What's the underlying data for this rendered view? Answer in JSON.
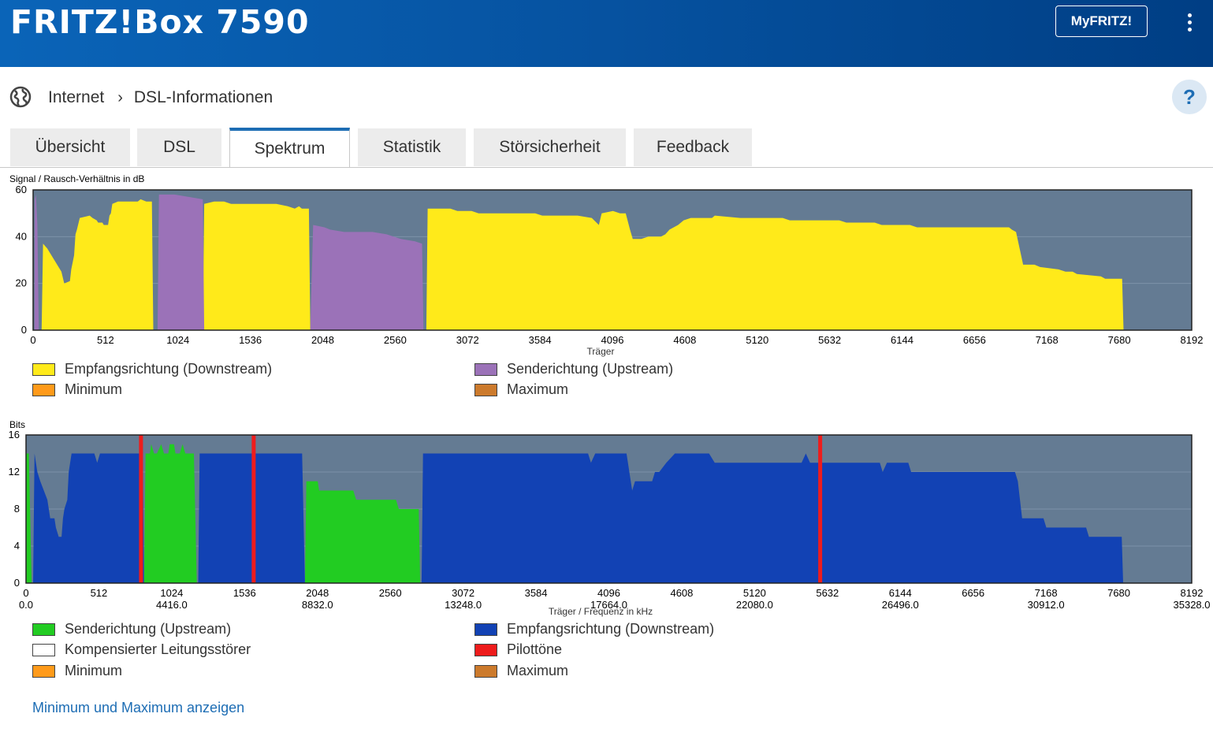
{
  "header": {
    "title": "FRITZ!Box 7590",
    "myfritz_label": "MyFRITZ!"
  },
  "breadcrumb": {
    "items": [
      "Internet",
      "DSL-Informationen"
    ]
  },
  "tabs": [
    "Übersicht",
    "DSL",
    "Spektrum",
    "Statistik",
    "Störsicherheit",
    "Feedback"
  ],
  "active_tab": "Spektrum",
  "colors": {
    "downstream_snr": "#ffea1a",
    "upstream_snr": "#9b72b8",
    "upstream_bits": "#22cc22",
    "downstream_bits": "#1242b4",
    "pilot": "#ee1c1c",
    "minimum": "#ff9a1a",
    "maximum": "#cc7a2c",
    "plot_bg": "#647b93"
  },
  "chart_data": [
    {
      "type": "area",
      "ylabel": "Signal / Rausch-Verhältnis in dB",
      "xlabel": "Träger",
      "ylim": [
        0,
        60
      ],
      "xlim": [
        0,
        8192
      ],
      "yticks": [
        0,
        20,
        40,
        60
      ],
      "xticks": [
        0,
        512,
        1024,
        1536,
        2048,
        2560,
        3072,
        3584,
        4096,
        4608,
        5120,
        5632,
        6144,
        6656,
        7168,
        7680,
        8192
      ],
      "grid": true,
      "series": [
        {
          "name": "Empfangsrichtung (Downstream)",
          "color": "#ffea1a",
          "segments": [
            [
              [
                60,
                0
              ],
              [
                70,
                37
              ],
              [
                100,
                35
              ],
              [
                200,
                25
              ],
              [
                220,
                20
              ],
              [
                260,
                21
              ],
              [
                270,
                26
              ],
              [
                290,
                32
              ],
              [
                300,
                41
              ],
              [
                310,
                43
              ],
              [
                330,
                48
              ],
              [
                400,
                49
              ],
              [
                420,
                48
              ],
              [
                450,
                47
              ],
              [
                460,
                46
              ],
              [
                490,
                46
              ],
              [
                500,
                45
              ],
              [
                530,
                45
              ],
              [
                540,
                49
              ],
              [
                550,
                50
              ],
              [
                560,
                54
              ],
              [
                600,
                55
              ],
              [
                740,
                55
              ],
              [
                760,
                56
              ],
              [
                800,
                55
              ],
              [
                840,
                55
              ],
              [
                850,
                0
              ]
            ],
            [
              [
                1200,
                0
              ],
              [
                1210,
                54
              ],
              [
                1280,
                55
              ],
              [
                1350,
                55
              ],
              [
                1400,
                54
              ],
              [
                1640,
                54
              ],
              [
                1720,
                54
              ],
              [
                1800,
                53
              ],
              [
                1850,
                52
              ],
              [
                1880,
                53
              ],
              [
                1900,
                52
              ],
              [
                1950,
                52
              ],
              [
                1960,
                0
              ]
            ],
            [
              [
                2780,
                0
              ],
              [
                2790,
                52
              ],
              [
                2950,
                52
              ],
              [
                3000,
                51
              ],
              [
                3100,
                51
              ],
              [
                3150,
                50
              ],
              [
                3550,
                50
              ],
              [
                3600,
                49
              ],
              [
                3850,
                49
              ],
              [
                3950,
                48
              ],
              [
                4000,
                45
              ],
              [
                4020,
                50
              ],
              [
                4100,
                51
              ],
              [
                4150,
                50
              ],
              [
                4190,
                50
              ],
              [
                4220,
                43
              ],
              [
                4240,
                39
              ],
              [
                4300,
                39
              ],
              [
                4350,
                40
              ],
              [
                4440,
                40
              ],
              [
                4470,
                41
              ],
              [
                4500,
                43
              ],
              [
                4560,
                45
              ],
              [
                4600,
                47
              ],
              [
                4650,
                48
              ],
              [
                4800,
                48
              ],
              [
                4820,
                49
              ],
              [
                5000,
                48
              ],
              [
                5300,
                48
              ],
              [
                5350,
                47
              ],
              [
                5700,
                47
              ],
              [
                5750,
                46
              ],
              [
                5950,
                46
              ],
              [
                6000,
                45
              ],
              [
                6200,
                45
              ],
              [
                6250,
                44
              ],
              [
                6900,
                44
              ],
              [
                6920,
                43
              ],
              [
                6950,
                42
              ],
              [
                7000,
                28
              ],
              [
                7080,
                28
              ],
              [
                7120,
                27
              ],
              [
                7250,
                26
              ],
              [
                7300,
                25
              ],
              [
                7350,
                25
              ],
              [
                7380,
                24
              ],
              [
                7550,
                23
              ],
              [
                7580,
                22
              ],
              [
                7700,
                22
              ],
              [
                7710,
                0
              ]
            ]
          ]
        },
        {
          "name": "Senderichtung (Upstream)",
          "color": "#9b72b8",
          "segments": [
            [
              [
                10,
                0
              ],
              [
                12,
                56
              ],
              [
                20,
                58
              ],
              [
                30,
                45
              ],
              [
                40,
                0
              ]
            ],
            [
              [
                880,
                0
              ],
              [
                890,
                58
              ],
              [
                1000,
                58
              ],
              [
                1100,
                57
              ],
              [
                1200,
                56
              ],
              [
                1210,
                0
              ]
            ],
            [
              [
                1960,
                0
              ],
              [
                1980,
                45
              ],
              [
                2060,
                44
              ],
              [
                2100,
                43
              ],
              [
                2200,
                42
              ],
              [
                2400,
                42
              ],
              [
                2500,
                41
              ],
              [
                2600,
                39
              ],
              [
                2700,
                38
              ],
              [
                2750,
                37
              ],
              [
                2760,
                0
              ]
            ]
          ]
        },
        {
          "name": "Minimum",
          "color": "#ff9a1a",
          "segments": []
        },
        {
          "name": "Maximum",
          "color": "#cc7a2c",
          "segments": []
        }
      ],
      "legend": [
        {
          "label": "Empfangsrichtung (Downstream)",
          "color": "#ffea1a"
        },
        {
          "label": "Senderichtung (Upstream)",
          "color": "#9b72b8"
        },
        {
          "label": "Minimum",
          "color": "#ff9a1a"
        },
        {
          "label": "Maximum",
          "color": "#cc7a2c"
        }
      ]
    },
    {
      "type": "area",
      "ylabel": "Bits",
      "xlabel": "Träger / Frequenz in kHz",
      "ylim": [
        0,
        16
      ],
      "xlim": [
        0,
        8192
      ],
      "yticks": [
        0,
        4,
        8,
        12,
        16
      ],
      "ytick_labels": [
        "0",
        "4",
        "8",
        "12",
        "16"
      ],
      "xticks": [
        0,
        512,
        1024,
        1536,
        2048,
        2560,
        3072,
        3584,
        4096,
        4608,
        5120,
        5632,
        6144,
        6656,
        7168,
        7680,
        8192
      ],
      "xticks_khz": [
        [
          0,
          "0.0"
        ],
        [
          1024,
          "4416.0"
        ],
        [
          2048,
          "8832.0"
        ],
        [
          3072,
          "13248.0"
        ],
        [
          4096,
          "17664.0"
        ],
        [
          5120,
          "22080.0"
        ],
        [
          6144,
          "26496.0"
        ],
        [
          7168,
          "30912.0"
        ],
        [
          8192,
          "35328.0"
        ]
      ],
      "grid": true,
      "series": [
        {
          "name": "Empfangsrichtung (Downstream)",
          "color": "#1242b4",
          "segments": [
            [
              [
                50,
                0
              ],
              [
                60,
                14
              ],
              [
                80,
                12
              ],
              [
                100,
                11
              ],
              [
                150,
                9
              ],
              [
                170,
                7
              ],
              [
                200,
                7
              ],
              [
                210,
                6
              ],
              [
                230,
                5
              ],
              [
                250,
                5
              ],
              [
                260,
                7
              ],
              [
                270,
                8
              ],
              [
                290,
                9
              ],
              [
                300,
                12
              ],
              [
                320,
                14
              ],
              [
                480,
                14
              ],
              [
                500,
                13
              ],
              [
                520,
                14
              ],
              [
                820,
                14
              ],
              [
                830,
                0
              ]
            ],
            [
              [
                1210,
                0
              ],
              [
                1220,
                14
              ],
              [
                1940,
                14
              ],
              [
                1960,
                0
              ]
            ],
            [
              [
                2780,
                0
              ],
              [
                2790,
                14
              ],
              [
                3950,
                14
              ],
              [
                3970,
                13
              ],
              [
                4000,
                14
              ],
              [
                4220,
                14
              ],
              [
                4260,
                10
              ],
              [
                4280,
                11
              ],
              [
                4400,
                11
              ],
              [
                4420,
                12
              ],
              [
                4450,
                12
              ],
              [
                4500,
                13
              ],
              [
                4560,
                14
              ],
              [
                4800,
                14
              ],
              [
                4840,
                13
              ],
              [
                5450,
                13
              ],
              [
                5480,
                14
              ],
              [
                5510,
                13
              ],
              [
                6000,
                13
              ],
              [
                6020,
                12
              ],
              [
                6050,
                13
              ],
              [
                6200,
                13
              ],
              [
                6220,
                12
              ],
              [
                6950,
                12
              ],
              [
                6970,
                11
              ],
              [
                7000,
                7
              ],
              [
                7150,
                7
              ],
              [
                7170,
                6
              ],
              [
                7450,
                6
              ],
              [
                7470,
                5
              ],
              [
                7700,
                5
              ],
              [
                7710,
                0
              ]
            ]
          ]
        },
        {
          "name": "Senderichtung (Upstream)",
          "color": "#22cc22",
          "segments": [
            [
              [
                0,
                0
              ],
              [
                0,
                14
              ],
              [
                20,
                14
              ],
              [
                40,
                0
              ]
            ],
            [
              [
                830,
                0
              ],
              [
                840,
                14
              ],
              [
                870,
                14
              ],
              [
                880,
                15
              ],
              [
                900,
                14
              ],
              [
                920,
                14
              ],
              [
                950,
                15
              ],
              [
                970,
                14
              ],
              [
                1000,
                14
              ],
              [
                1010,
                15
              ],
              [
                1040,
                15
              ],
              [
                1050,
                14
              ],
              [
                1080,
                14
              ],
              [
                1100,
                15
              ],
              [
                1120,
                14
              ],
              [
                1180,
                14
              ],
              [
                1200,
                0
              ]
            ],
            [
              [
                1960,
                0
              ],
              [
                1970,
                11
              ],
              [
                2050,
                11
              ],
              [
                2060,
                10
              ],
              [
                2300,
                10
              ],
              [
                2320,
                9
              ],
              [
                2600,
                9
              ],
              [
                2620,
                8
              ],
              [
                2760,
                8
              ],
              [
                2770,
                0
              ]
            ]
          ]
        },
        {
          "name": "Pilottöne",
          "color": "#ee1c1c",
          "carriers": [
            808,
            1600,
            5581
          ]
        },
        {
          "name": "Kompensierter Leitungsstörer",
          "color": "#ffffff",
          "segments": []
        },
        {
          "name": "Minimum",
          "color": "#ff9a1a",
          "segments": []
        },
        {
          "name": "Maximum",
          "color": "#cc7a2c",
          "segments": []
        }
      ],
      "legend": [
        {
          "label": "Senderichtung (Upstream)",
          "color": "#22cc22"
        },
        {
          "label": "Empfangsrichtung (Downstream)",
          "color": "#1242b4"
        },
        {
          "label": "Kompensierter Leitungsstörer",
          "color": "#ffffff"
        },
        {
          "label": "Pilottöne",
          "color": "#ee1c1c"
        },
        {
          "label": "Minimum",
          "color": "#ff9a1a"
        },
        {
          "label": "Maximum",
          "color": "#cc7a2c"
        }
      ]
    }
  ],
  "link_minmax": "Minimum und Maximum anzeigen"
}
